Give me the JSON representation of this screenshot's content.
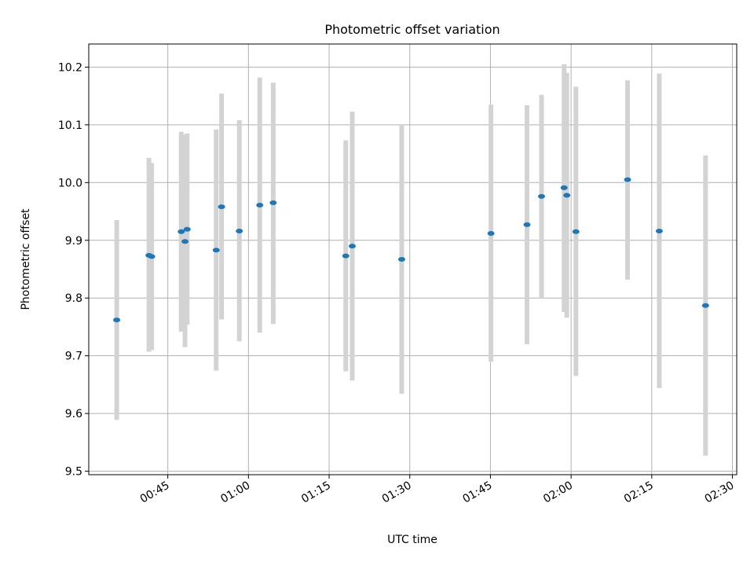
{
  "chart_data": {
    "type": "scatter",
    "title": "Photometric offset variation",
    "xlabel": "UTC time",
    "ylabel": "Photometric offset",
    "x_tick_labels": [
      "00:45",
      "01:00",
      "01:15",
      "01:30",
      "01:45",
      "02:00",
      "02:15",
      "02:30"
    ],
    "x_tick_minutes": [
      45,
      60,
      75,
      90,
      105,
      120,
      135,
      150
    ],
    "y_tick_labels": [
      "9.5",
      "9.6",
      "9.7",
      "9.8",
      "9.9",
      "10.0",
      "10.1",
      "10.2"
    ],
    "y_ticks": [
      9.5,
      9.6,
      9.7,
      9.8,
      9.9,
      10.0,
      10.1,
      10.2
    ],
    "xlim_minutes": [
      30.3,
      150.8
    ],
    "ylim": [
      9.494,
      10.24
    ],
    "grid": true,
    "marker_color": "#1f77b4",
    "errorbar_color": "#d3d3d3",
    "points": [
      {
        "x": 35.5,
        "y": 9.762,
        "lo": 9.589,
        "hi": 9.935
      },
      {
        "x": 41.5,
        "y": 9.874,
        "lo": 9.707,
        "hi": 10.043
      },
      {
        "x": 42.0,
        "y": 9.872,
        "lo": 9.71,
        "hi": 10.034
      },
      {
        "x": 47.5,
        "y": 9.915,
        "lo": 9.742,
        "hi": 10.088
      },
      {
        "x": 48.2,
        "y": 9.898,
        "lo": 9.715,
        "hi": 10.083
      },
      {
        "x": 48.6,
        "y": 9.919,
        "lo": 9.754,
        "hi": 10.085
      },
      {
        "x": 54.0,
        "y": 9.883,
        "lo": 9.674,
        "hi": 10.092
      },
      {
        "x": 55.0,
        "y": 9.958,
        "lo": 9.763,
        "hi": 10.154
      },
      {
        "x": 58.3,
        "y": 9.916,
        "lo": 9.725,
        "hi": 10.108
      },
      {
        "x": 62.1,
        "y": 9.961,
        "lo": 9.74,
        "hi": 10.182
      },
      {
        "x": 64.6,
        "y": 9.965,
        "lo": 9.755,
        "hi": 10.173
      },
      {
        "x": 78.1,
        "y": 9.873,
        "lo": 9.673,
        "hi": 10.073
      },
      {
        "x": 79.3,
        "y": 9.89,
        "lo": 9.657,
        "hi": 10.123
      },
      {
        "x": 88.5,
        "y": 9.867,
        "lo": 9.634,
        "hi": 10.1
      },
      {
        "x": 105.1,
        "y": 9.912,
        "lo": 9.69,
        "hi": 10.135
      },
      {
        "x": 111.8,
        "y": 9.927,
        "lo": 9.72,
        "hi": 10.134
      },
      {
        "x": 114.5,
        "y": 9.976,
        "lo": 9.8,
        "hi": 10.152
      },
      {
        "x": 118.7,
        "y": 9.991,
        "lo": 9.776,
        "hi": 10.205
      },
      {
        "x": 119.2,
        "y": 9.978,
        "lo": 9.766,
        "hi": 10.19
      },
      {
        "x": 120.9,
        "y": 9.915,
        "lo": 9.665,
        "hi": 10.166
      },
      {
        "x": 130.5,
        "y": 10.005,
        "lo": 9.832,
        "hi": 10.177
      },
      {
        "x": 136.4,
        "y": 9.916,
        "lo": 9.644,
        "hi": 10.189
      },
      {
        "x": 145.0,
        "y": 9.787,
        "lo": 9.527,
        "hi": 10.047
      }
    ]
  }
}
